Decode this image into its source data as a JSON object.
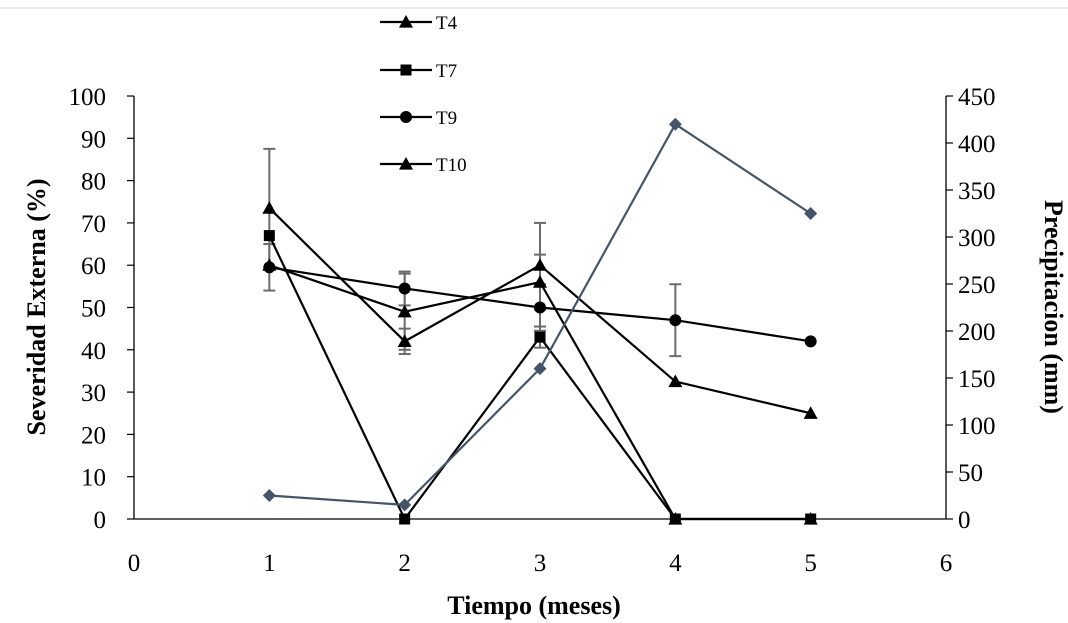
{
  "chart_data": {
    "type": "line",
    "xlabel": "Tiempo (meses)",
    "ylabel": "Severidad Externa (%)",
    "y2label": "Precipitacion (mm)",
    "xlim": [
      0,
      6
    ],
    "xticks": [
      "0",
      "1",
      "2",
      "3",
      "4",
      "5",
      "6"
    ],
    "ylim": [
      0,
      100
    ],
    "yticks": [
      "0",
      "10",
      "20",
      "30",
      "40",
      "50",
      "60",
      "70",
      "80",
      "90",
      "100"
    ],
    "y2lim": [
      0,
      450
    ],
    "y2ticks": [
      "0",
      "50",
      "100",
      "150",
      "200",
      "250",
      "300",
      "350",
      "400",
      "450"
    ],
    "grid": false,
    "legend_position": "top-left",
    "series": [
      {
        "name": "T4",
        "marker": "triangle",
        "axis": "left",
        "color": "#000000",
        "x": [
          1,
          2,
          3,
          4,
          5
        ],
        "values": [
          73.5,
          42,
          60,
          32.5,
          25
        ],
        "error": [
          14,
          3,
          10,
          null,
          null
        ]
      },
      {
        "name": "T7",
        "marker": "square",
        "axis": "left",
        "color": "#000000",
        "x": [
          1,
          2,
          3,
          4,
          5
        ],
        "values": [
          67,
          0,
          43,
          0,
          0
        ],
        "error": [
          null,
          null,
          2.5,
          null,
          null
        ]
      },
      {
        "name": "T9",
        "marker": "circle",
        "axis": "left",
        "color": "#000000",
        "x": [
          1,
          2,
          3,
          4,
          5
        ],
        "values": [
          59.5,
          54.5,
          50,
          47,
          42
        ],
        "error": [
          5.5,
          4,
          5.5,
          8.5,
          null
        ]
      },
      {
        "name": "T10",
        "marker": "triangle",
        "axis": "left",
        "color": "#000000",
        "x": [
          1,
          2,
          3,
          4,
          5
        ],
        "values": [
          60,
          49,
          56,
          0,
          0
        ],
        "error": [
          null,
          9,
          6.5,
          null,
          null
        ]
      },
      {
        "name": "",
        "marker": "diamond",
        "axis": "right",
        "color": "#44546A",
        "x": [
          1,
          2,
          3,
          4,
          5
        ],
        "values": [
          25,
          15,
          160,
          420,
          325
        ]
      }
    ]
  }
}
